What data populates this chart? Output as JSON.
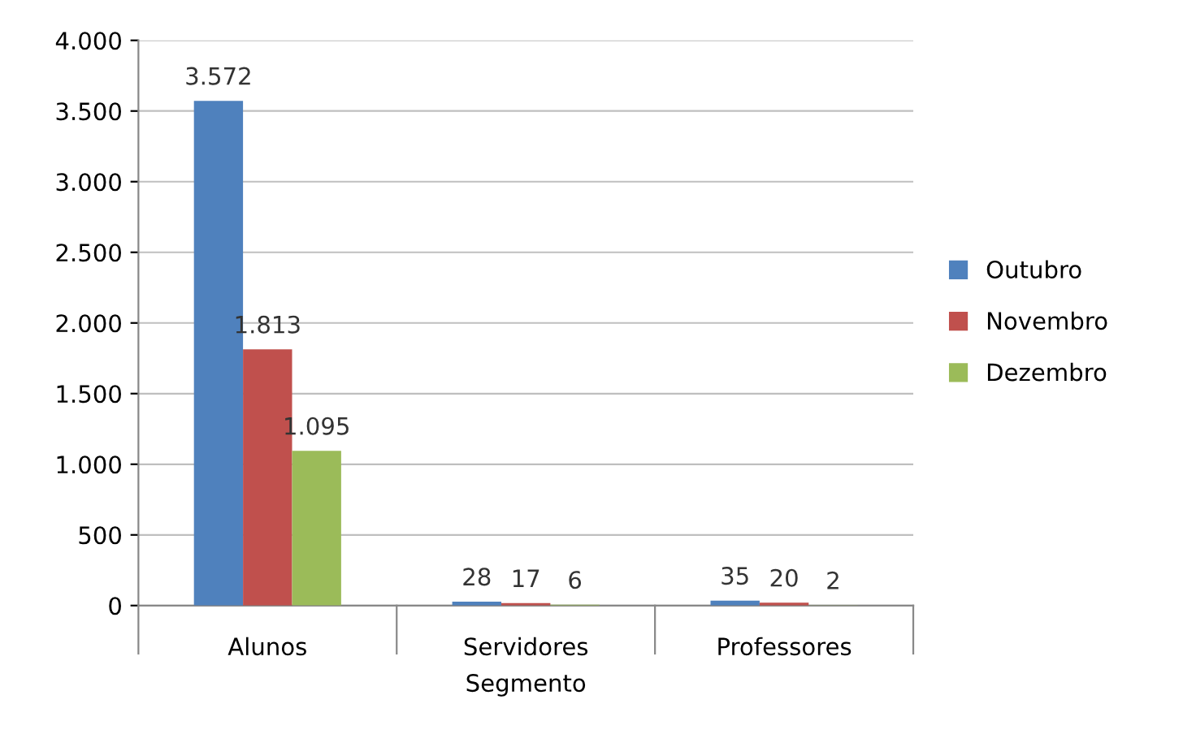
{
  "chart_data": {
    "type": "bar",
    "categories": [
      "Alunos",
      "Servidores",
      "Professores"
    ],
    "xlabel": "Segmento",
    "series": [
      {
        "name": "Outubro",
        "color": "#4f81bd",
        "values": [
          3572,
          28,
          35
        ],
        "value_labels": [
          "3.572",
          "28",
          "35"
        ]
      },
      {
        "name": "Novembro",
        "color": "#c0504d",
        "values": [
          1813,
          17,
          20
        ],
        "value_labels": [
          "1.813",
          "17",
          "20"
        ]
      },
      {
        "name": "Dezembro",
        "color": "#9bbb59",
        "values": [
          1095,
          6,
          2
        ],
        "value_labels": [
          "1.095",
          "6",
          "2"
        ]
      }
    ],
    "ylim": [
      0,
      4000
    ],
    "yticks": [
      {
        "value": 0,
        "label": "0"
      },
      {
        "value": 500,
        "label": "500"
      },
      {
        "value": 1000,
        "label": "1.000"
      },
      {
        "value": 1500,
        "label": "1.500"
      },
      {
        "value": 2000,
        "label": "2.000"
      },
      {
        "value": 2500,
        "label": "2.500"
      },
      {
        "value": 3000,
        "label": "3.000"
      },
      {
        "value": 3500,
        "label": "3.500"
      },
      {
        "value": 4000,
        "label": "4.000"
      }
    ],
    "grid": "y",
    "legend": "right"
  }
}
